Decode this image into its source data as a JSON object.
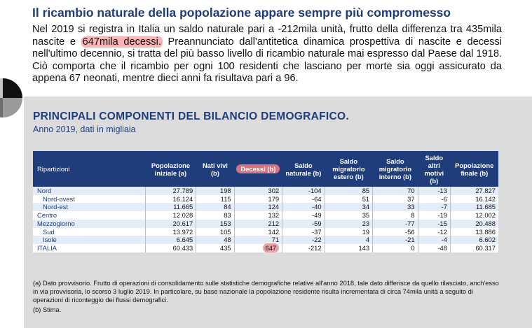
{
  "header": {
    "title": "Il ricambio naturale della popolazione appare sempre più compromesso"
  },
  "paragraph": {
    "before": "Nel 2019 si registra in Italia un saldo naturale pari a -212mila unità, frutto della differenza tra 435mila nascite e ",
    "highlight": "647mila decessi.",
    "after": " Preannunciato dall'antitetica dinamica prospettiva di nascite e decessi nell'ultimo decennio, si tratta del più basso livello di ricambio naturale mai espresso dal Paese dal 1918. Ciò comporta che il ricambio per ogni 100 residenti che lasciano per morte sia oggi assicurato da appena 67 neonati, mentre dieci anni fa risultava pari a 96."
  },
  "panel": {
    "title": "PRINCIPALI COMPONENTI DEL BILANCIO DEMOGRAFICO.",
    "subtitle": "Anno 2019, dati in migliaia"
  },
  "table": {
    "headers": [
      "Ripartizioni",
      "Popolazione iniziale (a)",
      "Nati vivi (b)",
      "Decessi (b)",
      "Saldo naturale (b)",
      "Saldo migratorio estero (b)",
      "Saldo migratorio interno (b)",
      "Saldo altri motivi (b)",
      "Popolazione finale (b)"
    ],
    "rows": [
      {
        "label": "Nord",
        "indent": false,
        "values": [
          "27.789",
          "198",
          "302",
          "-104",
          "85",
          "70",
          "-13",
          "27.827"
        ]
      },
      {
        "label": "Nord-ovest",
        "indent": true,
        "values": [
          "16.124",
          "115",
          "179",
          "-64",
          "51",
          "37",
          "-6",
          "16.142"
        ]
      },
      {
        "label": "Nord-est",
        "indent": true,
        "values": [
          "11.665",
          "84",
          "124",
          "-40",
          "34",
          "33",
          "-7",
          "11.685"
        ]
      },
      {
        "label": "Centro",
        "indent": false,
        "values": [
          "12.028",
          "83",
          "132",
          "-49",
          "35",
          "8",
          "-19",
          "12.002"
        ]
      },
      {
        "label": "Mezzogiorno",
        "indent": false,
        "values": [
          "20.617",
          "153",
          "212",
          "-59",
          "23",
          "-77",
          "-15",
          "20.488"
        ]
      },
      {
        "label": "Sud",
        "indent": true,
        "values": [
          "13.972",
          "105",
          "142",
          "-37",
          "19",
          "-56",
          "-12",
          "13.886"
        ]
      },
      {
        "label": "Isole",
        "indent": true,
        "values": [
          "6.645",
          "48",
          "71",
          "-22",
          "4",
          "-21",
          "-4",
          "6.602"
        ]
      },
      {
        "label": "ITALIA",
        "indent": false,
        "values": [
          "60.433",
          "435",
          "647",
          "-212",
          "143",
          "0",
          "-48",
          "60.317"
        ]
      }
    ]
  },
  "notes": {
    "a": "(a) Dato provvisorio. Frutto di operazioni di consolidamento sulle statistiche demografiche relative all'anno 2018, tale dato differisce da quello rilasciato, anch'esso in via provvisoria, lo scorso 3 luglio 2019. In particolare, su base nazionale la popolazione residente risulta incrementata di circa 74mila unità a seguito di operazioni di riconteggio dei flussi demografici.",
    "b": "(b) Stima."
  },
  "colors": {
    "brand": "#1f3d7a",
    "highlight": "#f7b3b6",
    "panel": "#dcdcdc"
  },
  "icons": {
    "pie": "pie-chart-icon"
  }
}
